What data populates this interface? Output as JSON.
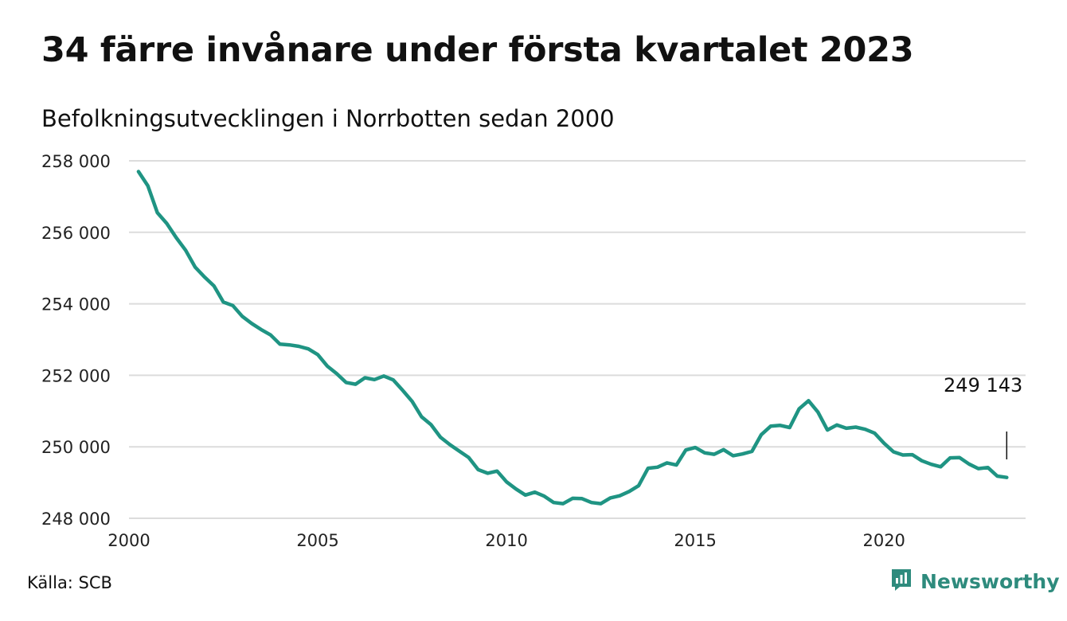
{
  "header": {
    "title": "34 färre invånare under första kvartalet 2023",
    "subtitle": "Befolkningsutvecklingen i Norrbotten sedan 2000"
  },
  "footer": {
    "source": "Källa: SCB",
    "brand": "Newsworthy",
    "brand_icon": "newsworthy-logo-icon",
    "brand_color": "#2e8b7d"
  },
  "chart_data": {
    "type": "line",
    "title": "34 färre invånare under första kvartalet 2023",
    "subtitle": "Befolkningsutvecklingen i Norrbotten sedan 2000",
    "xlabel": "",
    "ylabel": "",
    "xlim": [
      2000,
      2023.75
    ],
    "ylim": [
      248000,
      258000
    ],
    "x_ticks": [
      2000,
      2005,
      2010,
      2015,
      2020
    ],
    "x_tick_labels": [
      "2000",
      "2005",
      "2010",
      "2015",
      "2020"
    ],
    "y_ticks": [
      248000,
      250000,
      252000,
      254000,
      256000,
      258000
    ],
    "y_tick_labels": [
      "248 000",
      "250 000",
      "252 000",
      "254 000",
      "256 000",
      "258 000"
    ],
    "grid": "horizontal",
    "line_color": "#1f9483",
    "end_annotation": "249 143",
    "series": [
      {
        "x": [
          2000.25,
          2000.5,
          2000.75,
          2001.0,
          2001.25,
          2001.5,
          2001.75,
          2002.0,
          2002.25,
          2002.5,
          2002.75,
          2003.0,
          2003.25,
          2003.5,
          2003.75,
          2004.0,
          2004.25,
          2004.5,
          2004.75,
          2005.0,
          2005.25,
          2005.5,
          2005.75,
          2006.0,
          2006.25,
          2006.5,
          2006.75,
          2007.0,
          2007.25,
          2007.5,
          2007.75,
          2008.0,
          2008.25,
          2008.5,
          2008.75,
          2009.0,
          2009.25,
          2009.5,
          2009.75,
          2010.0,
          2010.25,
          2010.5,
          2010.75,
          2011.0,
          2011.25,
          2011.5,
          2011.75,
          2012.0,
          2012.25,
          2012.5,
          2012.75,
          2013.0,
          2013.25,
          2013.5,
          2013.75,
          2014.0,
          2014.25,
          2014.5,
          2014.75,
          2015.0,
          2015.25,
          2015.5,
          2015.75,
          2016.0,
          2016.25,
          2016.5,
          2016.75,
          2017.0,
          2017.25,
          2017.5,
          2017.75,
          2018.0,
          2018.25,
          2018.5,
          2018.75,
          2019.0,
          2019.25,
          2019.5,
          2019.75,
          2020.0,
          2020.25,
          2020.5,
          2020.75,
          2021.0,
          2021.25,
          2021.5,
          2021.75,
          2022.0,
          2022.25,
          2022.5,
          2022.75,
          2023.0,
          2023.25
        ],
        "values": [
          257700,
          257300,
          256550,
          256250,
          255850,
          255500,
          255030,
          254750,
          254500,
          254050,
          253950,
          253650,
          253450,
          253280,
          253130,
          252870,
          252850,
          252810,
          252740,
          252580,
          252260,
          252050,
          251800,
          251750,
          251930,
          251880,
          251980,
          251870,
          251580,
          251270,
          250840,
          250620,
          250270,
          250060,
          249880,
          249700,
          249360,
          249260,
          249320,
          249020,
          248820,
          248650,
          248730,
          248620,
          248440,
          248410,
          248560,
          248550,
          248440,
          248410,
          248570,
          248630,
          248750,
          248910,
          249400,
          249430,
          249550,
          249490,
          249910,
          249980,
          249830,
          249790,
          249920,
          249750,
          249800,
          249870,
          250340,
          250580,
          250600,
          250540,
          251060,
          251290,
          250970,
          250470,
          250610,
          250520,
          250550,
          250490,
          250380,
          250100,
          249860,
          249770,
          249780,
          249610,
          249510,
          249440,
          249690,
          249700,
          249520,
          249390,
          249420,
          249180,
          249143
        ]
      }
    ]
  }
}
